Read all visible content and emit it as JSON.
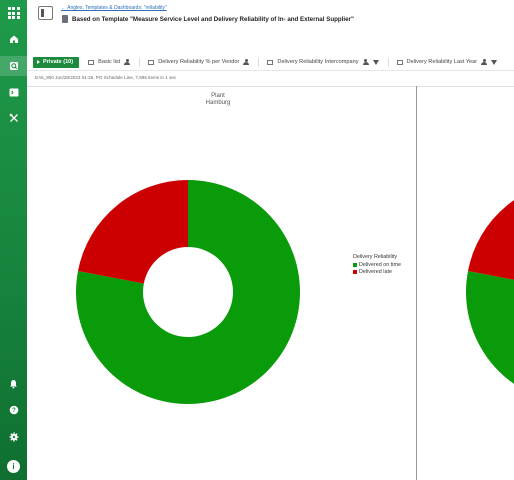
{
  "header": {
    "breadcrumb": "← Angles, Templates & Dashboards: \"reliability\"",
    "title": "Based on Template \"Measure Service Level and Delivery Reliability of In- and External Supplier\""
  },
  "tabs": [
    {
      "label": "Private (10)"
    },
    {
      "label": "Basic list"
    },
    {
      "label": "Delivery Reliability % per Vendor"
    },
    {
      "label": "Delivery Reliability Intercompany"
    },
    {
      "label": "Delivery Reliability Last Year"
    }
  ],
  "info_line": "EA5_800 Jun/28/2023 01:26, PO Schedule Line, 7,596 items in 1 sec",
  "chart_data": {
    "type": "pie",
    "title": "Plant",
    "subtitle": "Hamburg",
    "legend_title": "Delivery Reliability",
    "legend_position": "right",
    "series": [
      {
        "name": "Delivered on time",
        "value": 78,
        "color": "#0a9b0a"
      },
      {
        "name": "Delivered late",
        "value": 22,
        "color": "#cc0000"
      }
    ]
  }
}
